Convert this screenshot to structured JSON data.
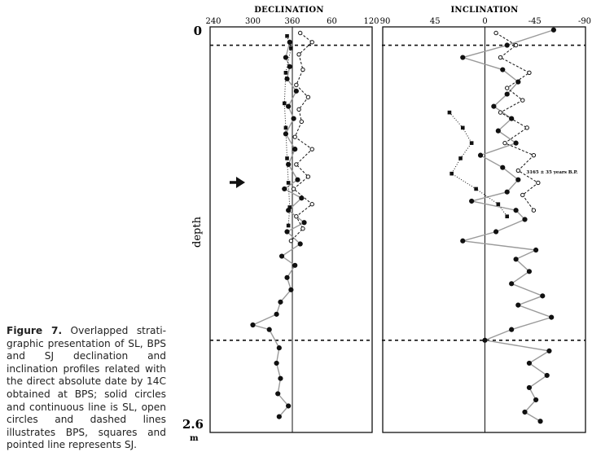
{
  "caption": {
    "label": "Figure 7.",
    "text": "Overlapped strati-graphic presentation of SL, BPS and SJ declination and inclination profiles related with the direct absolute date by 14C obtained at BPS; solid circles and continuous line is SL, open circles and dashed lines illustrates BPS, squares and pointed line represents SJ."
  },
  "depth_axis": {
    "label": "depth",
    "unit": "m",
    "ticks": [
      "0",
      "2.6"
    ]
  },
  "annotation": "3165 ± 35 years B.P.",
  "colors": {
    "ink": "#111111",
    "sl_line": "#9a9a9a"
  },
  "chart_data": [
    {
      "type": "line",
      "title": "DECLINATION",
      "xlabel": "DECLINATION",
      "ylabel": "depth",
      "tick_labels": [
        "240",
        "300",
        "360",
        "60",
        "120"
      ],
      "x_ticks_deg": [
        -120,
        -60,
        0,
        60,
        120
      ],
      "xlim": [
        -120,
        120
      ],
      "ylim": [
        0,
        2.6
      ],
      "reference_line_x": 0,
      "dashed_depth_markers": [
        0.12,
        2.05
      ],
      "series": [
        {
          "marker": "solid-circle",
          "line": "solid",
          "points": [
            [
              0.1,
              -4
            ],
            [
              0.2,
              -10
            ],
            [
              0.26,
              -4
            ],
            [
              0.34,
              -8
            ],
            [
              0.42,
              6
            ],
            [
              0.52,
              -6
            ],
            [
              0.6,
              2
            ],
            [
              0.7,
              -10
            ],
            [
              0.8,
              4
            ],
            [
              0.9,
              -6
            ],
            [
              1.0,
              8
            ],
            [
              1.06,
              -12
            ],
            [
              1.12,
              14
            ],
            [
              1.2,
              -6
            ],
            [
              1.28,
              18
            ],
            [
              1.34,
              -8
            ],
            [
              1.42,
              12
            ],
            [
              1.5,
              -16
            ],
            [
              1.56,
              4
            ],
            [
              1.64,
              -8
            ],
            [
              1.72,
              -2
            ],
            [
              1.8,
              -18
            ],
            [
              1.88,
              -24
            ],
            [
              1.95,
              -60
            ],
            [
              1.98,
              -35
            ],
            [
              2.1,
              -20
            ],
            [
              2.2,
              -24
            ],
            [
              2.3,
              -18
            ],
            [
              2.4,
              -22
            ],
            [
              2.48,
              -6
            ],
            [
              2.55,
              -20
            ]
          ]
        },
        {
          "marker": "open-circle",
          "line": "dashed",
          "points": [
            [
              0.04,
              12
            ],
            [
              0.1,
              30
            ],
            [
              0.18,
              10
            ],
            [
              0.28,
              16
            ],
            [
              0.38,
              6
            ],
            [
              0.46,
              24
            ],
            [
              0.54,
              10
            ],
            [
              0.62,
              14
            ],
            [
              0.72,
              4
            ],
            [
              0.8,
              30
            ],
            [
              0.9,
              6
            ],
            [
              0.98,
              24
            ],
            [
              1.06,
              2
            ],
            [
              1.16,
              30
            ],
            [
              1.24,
              6
            ],
            [
              1.32,
              16
            ],
            [
              1.4,
              -2
            ]
          ]
        },
        {
          "marker": "square",
          "line": "dotted",
          "points": [
            [
              0.06,
              -8
            ],
            [
              0.14,
              -2
            ],
            [
              0.3,
              -10
            ],
            [
              0.5,
              -12
            ],
            [
              0.66,
              -10
            ],
            [
              0.86,
              -8
            ],
            [
              1.02,
              -6
            ],
            [
              1.18,
              -4
            ],
            [
              1.3,
              -6
            ]
          ]
        }
      ]
    },
    {
      "type": "line",
      "title": "INCLINATION",
      "xlabel": "INCLINATION",
      "tick_labels": [
        "90",
        "45",
        "0",
        "-45",
        "-90"
      ],
      "x_ticks_deg": [
        90,
        45,
        0,
        -45,
        -90
      ],
      "xlim": [
        90,
        -90
      ],
      "ylim": [
        0,
        2.6
      ],
      "reference_line_x": 0,
      "dashed_depth_markers": [
        0.12,
        2.05
      ],
      "series": [
        {
          "marker": "solid-circle",
          "line": "solid",
          "points": [
            [
              0.02,
              -62
            ],
            [
              0.12,
              -20
            ],
            [
              0.2,
              20
            ],
            [
              0.28,
              -16
            ],
            [
              0.36,
              -30
            ],
            [
              0.44,
              -20
            ],
            [
              0.52,
              -8
            ],
            [
              0.6,
              -24
            ],
            [
              0.68,
              -12
            ],
            [
              0.76,
              -28
            ],
            [
              0.84,
              4
            ],
            [
              0.92,
              -16
            ],
            [
              1.0,
              -30
            ],
            [
              1.08,
              -20
            ],
            [
              1.14,
              12
            ],
            [
              1.2,
              -28
            ],
            [
              1.26,
              -36
            ],
            [
              1.34,
              -10
            ],
            [
              1.4,
              20
            ],
            [
              1.46,
              -46
            ],
            [
              1.52,
              -28
            ],
            [
              1.6,
              -40
            ],
            [
              1.68,
              -24
            ],
            [
              1.76,
              -52
            ],
            [
              1.82,
              -30
            ],
            [
              1.9,
              -60
            ],
            [
              1.98,
              -24
            ],
            [
              2.05,
              0
            ],
            [
              2.12,
              -58
            ],
            [
              2.2,
              -40
            ],
            [
              2.28,
              -56
            ],
            [
              2.36,
              -40
            ],
            [
              2.44,
              -46
            ],
            [
              2.52,
              -36
            ],
            [
              2.58,
              -50
            ]
          ]
        },
        {
          "marker": "open-circle",
          "line": "dashed",
          "points": [
            [
              0.04,
              -10
            ],
            [
              0.12,
              -28
            ],
            [
              0.2,
              -14
            ],
            [
              0.3,
              -40
            ],
            [
              0.4,
              -20
            ],
            [
              0.48,
              -34
            ],
            [
              0.56,
              -14
            ],
            [
              0.66,
              -38
            ],
            [
              0.76,
              -18
            ],
            [
              0.84,
              -44
            ],
            [
              0.94,
              -30
            ],
            [
              1.02,
              -48
            ],
            [
              1.1,
              -34
            ],
            [
              1.2,
              -44
            ]
          ]
        },
        {
          "marker": "square",
          "line": "dotted",
          "points": [
            [
              0.56,
              32
            ],
            [
              0.66,
              20
            ],
            [
              0.76,
              12
            ],
            [
              0.86,
              22
            ],
            [
              0.96,
              30
            ],
            [
              1.06,
              8
            ],
            [
              1.16,
              -12
            ],
            [
              1.24,
              -20
            ]
          ]
        }
      ]
    }
  ]
}
